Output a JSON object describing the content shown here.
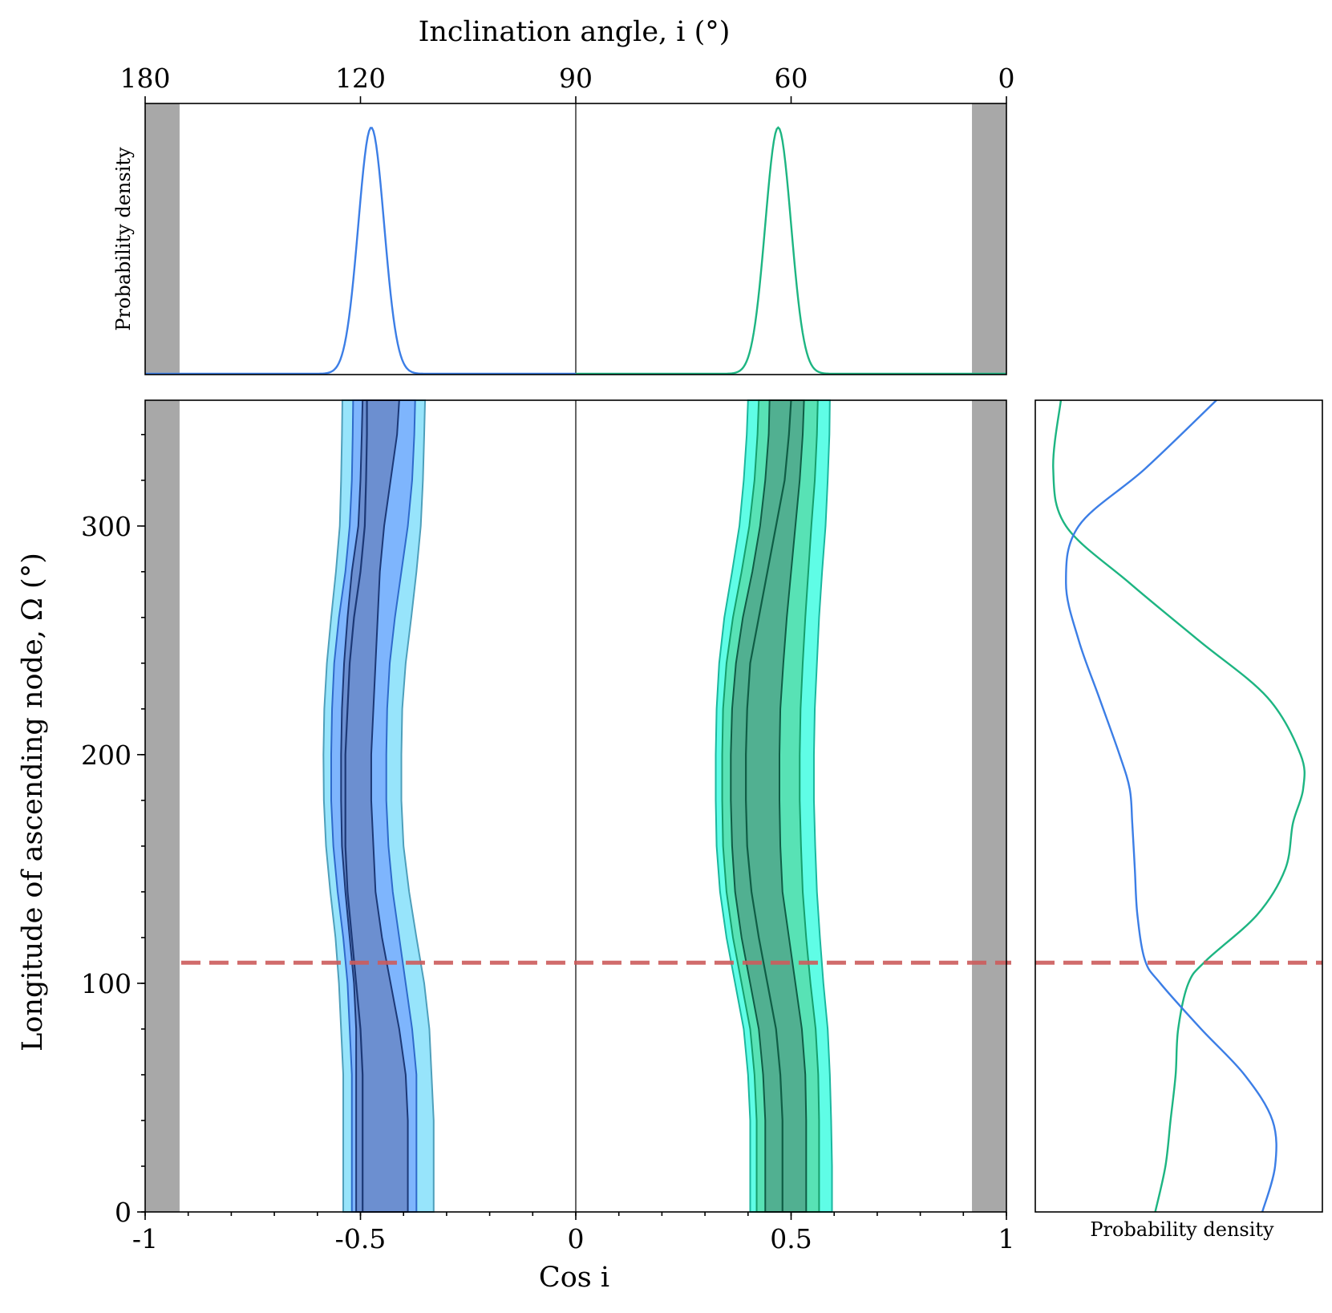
{
  "chart_data": {
    "type": "corner-posterior",
    "top_xlabel": "Inclination angle, i (°)",
    "top_ticks": [
      "180",
      "120",
      "90",
      "60",
      "0"
    ],
    "top_tick_degrees": [
      180,
      120,
      90,
      60,
      0
    ],
    "top_ylabel": "Probability density",
    "xlabel": "Cos i",
    "x_ticks": [
      "-1",
      "-0.5",
      "0",
      "0.5",
      "1"
    ],
    "x_tick_values": [
      -1,
      -0.5,
      0,
      0.5,
      1
    ],
    "xlim": [
      -1,
      1
    ],
    "ylabel": "Longitude of ascending node, Ω (°)",
    "y_ticks": [
      "0",
      "100",
      "200",
      "300"
    ],
    "y_tick_values": [
      0,
      100,
      200,
      300
    ],
    "ylim": [
      0,
      355
    ],
    "right_xlabel": "Probability density",
    "excluded_regions_cos_i": [
      [
        -1,
        -0.92
      ],
      [
        0.92,
        1
      ]
    ],
    "reference_line_omega": 109,
    "colors": {
      "excluded": "#a8a8a8",
      "reference": "#cd5c5c",
      "blue_line": "#3c7ee6",
      "green_line": "#1db582",
      "blue_fills": [
        "#97e4fb",
        "#7eb5fd",
        "#6c8fd0"
      ],
      "blue_edges": [
        "#4e9fbb",
        "#2f6acb",
        "#1c3876"
      ],
      "green_fills": [
        "#5ffde6",
        "#58e2b5",
        "#51b091"
      ],
      "green_edges": [
        "#1bb79e",
        "#169e6c",
        "#0f5d45"
      ]
    },
    "series": [
      {
        "color": "blue",
        "cos_i_peak": -0.475,
        "cos_i_sigma": 0.03,
        "omega_marginal": {
          "omega": [
            0,
            20,
            40,
            60,
            80,
            100,
            110,
            130,
            150,
            170,
            185,
            200,
            225,
            250,
            275,
            300,
            325,
            355
          ],
          "density": [
            0.84,
            0.89,
            0.88,
            0.77,
            0.6,
            0.44,
            0.38,
            0.35,
            0.34,
            0.33,
            0.32,
            0.28,
            0.2,
            0.12,
            0.07,
            0.12,
            0.38,
            0.66
          ]
        },
        "contours": {
          "omega": [
            0,
            20,
            40,
            60,
            80,
            100,
            120,
            140,
            160,
            180,
            200,
            220,
            240,
            260,
            280,
            300,
            320,
            340,
            355
          ],
          "center": [
            -0.495,
            -0.495,
            -0.495,
            -0.495,
            -0.5,
            -0.51,
            -0.52,
            -0.53,
            -0.535,
            -0.535,
            -0.535,
            -0.53,
            -0.525,
            -0.515,
            -0.5,
            -0.49,
            -0.487,
            -0.485,
            -0.485
          ],
          "bands": [
            {
              "left": [
                -0.51,
                -0.51,
                -0.51,
                -0.51,
                -0.51,
                -0.515,
                -0.525,
                -0.535,
                -0.543,
                -0.545,
                -0.545,
                -0.543,
                -0.538,
                -0.53,
                -0.52,
                -0.505,
                -0.5,
                -0.497,
                -0.495
              ],
              "right": [
                -0.39,
                -0.39,
                -0.39,
                -0.395,
                -0.41,
                -0.43,
                -0.45,
                -0.465,
                -0.47,
                -0.475,
                -0.475,
                -0.47,
                -0.465,
                -0.46,
                -0.455,
                -0.445,
                -0.43,
                -0.415,
                -0.41
              ]
            },
            {
              "left": [
                -0.52,
                -0.52,
                -0.52,
                -0.52,
                -0.525,
                -0.53,
                -0.54,
                -0.553,
                -0.563,
                -0.568,
                -0.568,
                -0.566,
                -0.561,
                -0.55,
                -0.535,
                -0.525,
                -0.52,
                -0.518,
                -0.517
              ],
              "right": [
                -0.37,
                -0.37,
                -0.37,
                -0.37,
                -0.38,
                -0.395,
                -0.41,
                -0.425,
                -0.435,
                -0.44,
                -0.44,
                -0.438,
                -0.432,
                -0.42,
                -0.405,
                -0.39,
                -0.38,
                -0.375,
                -0.373
              ]
            },
            {
              "left": [
                -0.54,
                -0.54,
                -0.54,
                -0.54,
                -0.545,
                -0.55,
                -0.558,
                -0.57,
                -0.58,
                -0.585,
                -0.586,
                -0.584,
                -0.578,
                -0.568,
                -0.557,
                -0.548,
                -0.545,
                -0.543,
                -0.542
              ],
              "right": [
                -0.33,
                -0.33,
                -0.33,
                -0.335,
                -0.34,
                -0.352,
                -0.37,
                -0.387,
                -0.4,
                -0.405,
                -0.405,
                -0.403,
                -0.395,
                -0.382,
                -0.37,
                -0.36,
                -0.355,
                -0.352,
                -0.35
              ]
            }
          ]
        }
      },
      {
        "color": "green",
        "cos_i_peak": 0.47,
        "cos_i_sigma": 0.03,
        "omega_marginal": {
          "omega": [
            0,
            20,
            40,
            60,
            80,
            100,
            110,
            130,
            150,
            170,
            185,
            200,
            225,
            250,
            275,
            300,
            325,
            355
          ],
          "density": [
            0.42,
            0.46,
            0.48,
            0.5,
            0.51,
            0.55,
            0.62,
            0.82,
            0.93,
            0.96,
            1.0,
            0.99,
            0.86,
            0.59,
            0.32,
            0.07,
            0.02,
            0.05
          ]
        },
        "contours": {
          "omega": [
            0,
            20,
            40,
            60,
            80,
            100,
            120,
            140,
            160,
            180,
            200,
            220,
            240,
            260,
            280,
            300,
            320,
            340,
            355
          ],
          "center": [
            0.48,
            0.48,
            0.48,
            0.475,
            0.465,
            0.445,
            0.425,
            0.408,
            0.398,
            0.395,
            0.395,
            0.398,
            0.405,
            0.425,
            0.445,
            0.465,
            0.485,
            0.495,
            0.5
          ],
          "bands": [
            {
              "left": [
                0.44,
                0.44,
                0.44,
                0.435,
                0.425,
                0.405,
                0.385,
                0.37,
                0.363,
                0.36,
                0.36,
                0.363,
                0.372,
                0.388,
                0.41,
                0.428,
                0.44,
                0.448,
                0.45
              ],
              "right": [
                0.535,
                0.535,
                0.535,
                0.533,
                0.525,
                0.51,
                0.495,
                0.48,
                0.475,
                0.473,
                0.473,
                0.475,
                0.482,
                0.49,
                0.5,
                0.51,
                0.52,
                0.527,
                0.53
              ]
            },
            {
              "left": [
                0.42,
                0.42,
                0.42,
                0.415,
                0.405,
                0.385,
                0.365,
                0.35,
                0.342,
                0.34,
                0.34,
                0.342,
                0.35,
                0.365,
                0.385,
                0.403,
                0.415,
                0.422,
                0.425
              ],
              "right": [
                0.565,
                0.565,
                0.565,
                0.563,
                0.557,
                0.545,
                0.535,
                0.527,
                0.523,
                0.52,
                0.52,
                0.522,
                0.527,
                0.533,
                0.54,
                0.547,
                0.555,
                0.56,
                0.562
              ]
            },
            {
              "left": [
                0.405,
                0.405,
                0.405,
                0.4,
                0.39,
                0.37,
                0.35,
                0.335,
                0.327,
                0.325,
                0.325,
                0.327,
                0.333,
                0.345,
                0.363,
                0.38,
                0.39,
                0.397,
                0.4
              ],
              "right": [
                0.595,
                0.595,
                0.593,
                0.59,
                0.585,
                0.575,
                0.567,
                0.56,
                0.556,
                0.553,
                0.553,
                0.555,
                0.56,
                0.565,
                0.572,
                0.58,
                0.585,
                0.589,
                0.59
              ]
            }
          ]
        }
      }
    ]
  }
}
